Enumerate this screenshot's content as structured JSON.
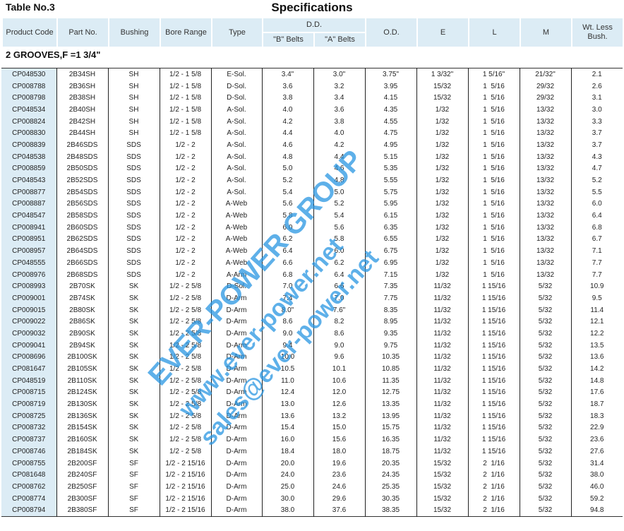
{
  "table_no": "Table No.3",
  "title": "Specifications",
  "header": {
    "product_code": "Product Code",
    "part_no": "Part No.",
    "bushing": "Bushing",
    "bore_range": "Bore Range",
    "type": "Type",
    "dd": "D.D.",
    "b_belts": "\"B\" Belts",
    "a_belts": "\"A\" Belts",
    "od": "O.D.",
    "e": "E",
    "l": "L",
    "m": "M",
    "wt": "Wt. Less Bush."
  },
  "section": "2 GROOVES,F =1 3/4\"",
  "rows": [
    [
      "CP048530",
      "2B34SH",
      "SH",
      "1/2 - 1 5/8",
      "E-Sol.",
      "3.4\"",
      "3.0\"",
      "3.75\"",
      "1 3/32\"",
      "1 5/16\"",
      "21/32\"",
      "2.1"
    ],
    [
      "CP008788",
      "2B36SH",
      "SH",
      "1/2 - 1 5/8",
      "D-Sol.",
      "3.6",
      "3.2",
      "3.95",
      "15/32",
      "1  5/16",
      "29/32",
      "2.6"
    ],
    [
      "CP008798",
      "2B38SH",
      "SH",
      "1/2 - 1 5/8",
      "D-Sol.",
      "3.8",
      "3.4",
      "4.15",
      "15/32",
      "1  5/16",
      "29/32",
      "3.1"
    ],
    [
      "CP048534",
      "2B40SH",
      "SH",
      "1/2 - 1 5/8",
      "A-Sol.",
      "4.0",
      "3.6",
      "4.35",
      "1/32",
      "1  5/16",
      "13/32",
      "3.0"
    ],
    [
      "CP008824",
      "2B42SH",
      "SH",
      "1/2 - 1 5/8",
      "A-Sol.",
      "4.2",
      "3.8",
      "4.55",
      "1/32",
      "1  5/16",
      "13/32",
      "3.3"
    ],
    [
      "CP008830",
      "2B44SH",
      "SH",
      "1/2 - 1 5/8",
      "A-Sol.",
      "4.4",
      "4.0",
      "4.75",
      "1/32",
      "1  5/16",
      "13/32",
      "3.7"
    ],
    [
      "CP008839",
      "2B46SDS",
      "SDS",
      "1/2 - 2",
      "A-Sol.",
      "4.6",
      "4.2",
      "4.95",
      "1/32",
      "1  5/16",
      "13/32",
      "3.7"
    ],
    [
      "CP048538",
      "2B48SDS",
      "SDS",
      "1/2 - 2",
      "A-Sol.",
      "4.8",
      "4.4",
      "5.15",
      "1/32",
      "1  5/16",
      "13/32",
      "4.3"
    ],
    [
      "CP008859",
      "2B50SDS",
      "SDS",
      "1/2 - 2",
      "A-Sol.",
      "5.0",
      "4.6",
      "5.35",
      "1/32",
      "1  5/16",
      "13/32",
      "4.7"
    ],
    [
      "CP048543",
      "2B52SDS",
      "SDS",
      "1/2 - 2",
      "A-Sol.",
      "5.2",
      "4.8",
      "5.55",
      "1/32",
      "1  5/16",
      "13/32",
      "5.2"
    ],
    [
      "CP008877",
      "2B54SDS",
      "SDS",
      "1/2 - 2",
      "A-Sol.",
      "5.4",
      "5.0",
      "5.75",
      "1/32",
      "1  5/16",
      "13/32",
      "5.5"
    ],
    [
      "CP008887",
      "2B56SDS",
      "SDS",
      "1/2 - 2",
      "A-Web",
      "5.6",
      "5.2",
      "5.95",
      "1/32",
      "1  5/16",
      "13/32",
      "6.0"
    ],
    [
      "CP048547",
      "2B58SDS",
      "SDS",
      "1/2 - 2",
      "A-Web",
      "5.8",
      "5.4",
      "6.15",
      "1/32",
      "1  5/16",
      "13/32",
      "6.4"
    ],
    [
      "CP008941",
      "2B60SDS",
      "SDS",
      "1/2 - 2",
      "A-Web",
      "6.0",
      "5.6",
      "6.35",
      "1/32",
      "1  5/16",
      "13/32",
      "6.8"
    ],
    [
      "CP008951",
      "2B62SDS",
      "SDS",
      "1/2 - 2",
      "A-Web",
      "6.2",
      "5.8",
      "6.55",
      "1/32",
      "1  5/16",
      "13/32",
      "6.7"
    ],
    [
      "CP008957",
      "2B64SDS",
      "SDS",
      "1/2 - 2",
      "A-Web",
      "6.4",
      "6.0",
      "6.75",
      "1/32",
      "1  5/16",
      "13/32",
      "7.1"
    ],
    [
      "CP048555",
      "2B66SDS",
      "SDS",
      "1/2 - 2",
      "A-Web",
      "6.6",
      "6.2",
      "6.95",
      "1/32",
      "1  5/16",
      "13/32",
      "7.7"
    ],
    [
      "CP008976",
      "2B68SDS",
      "SDS",
      "1/2 - 2",
      "A-Arm",
      "6.8",
      "6.4",
      "7.15",
      "1/32",
      "1  5/16",
      "13/32",
      "7.7"
    ],
    [
      "CP008993",
      "2B70SK",
      "SK",
      "1/2 - 2 5/8",
      "D-Sol.",
      "7.0",
      "6.6",
      "7.35",
      "11/32",
      "1 15/16",
      "5/32",
      "10.9"
    ],
    [
      "CP009001",
      "2B74SK",
      "SK",
      "1/2 - 2 5/8",
      "D-Arm",
      "7.4",
      "7.0",
      "7.75",
      "11/32",
      "1 15/16",
      "5/32",
      "9.5"
    ],
    [
      "CP009015",
      "2B80SK",
      "SK",
      "1/2 - 2 5/8",
      "D-Arm",
      "8.0\"",
      "7.6\"",
      "8.35",
      "11/32",
      "1 15/16",
      "5/32",
      "11.4"
    ],
    [
      "CP009022",
      "2B86SK",
      "SK",
      "1/2 - 2 5/8",
      "D-Arm",
      "8.6",
      "8.2",
      "8.95",
      "11/32",
      "1 15/16",
      "5/32",
      "12.1"
    ],
    [
      "CP009032",
      "2B90SK",
      "SK",
      "1/2 - 2 5/8",
      "D-Arm",
      "9.0",
      "8.6",
      "9.35",
      "11/32",
      "1 15/16",
      "5/32",
      "12.2"
    ],
    [
      "CP009041",
      "2B94SK",
      "SK",
      "1/2 - 2 5/8",
      "D-Arm",
      "9.4",
      "9.0",
      "9.75",
      "11/32",
      "1 15/16",
      "5/32",
      "13.5"
    ],
    [
      "CP008696",
      "2B100SK",
      "SK",
      "1/2 - 2 5/8",
      "D-Arm",
      "10.0",
      "9.6",
      "10.35",
      "11/32",
      "1 15/16",
      "5/32",
      "13.6"
    ],
    [
      "CP081647",
      "2B105SK",
      "SK",
      "1/2 - 2 5/8",
      "D-Arm",
      "10.5",
      "10.1",
      "10.85",
      "11/32",
      "1 15/16",
      "5/32",
      "14.2"
    ],
    [
      "CP048519",
      "2B110SK",
      "SK",
      "1/2 - 2 5/8",
      "D-Arm",
      "11.0",
      "10.6",
      "11.35",
      "11/32",
      "1 15/16",
      "5/32",
      "14.8"
    ],
    [
      "CP008715",
      "2B124SK",
      "SK",
      "1/2 - 2 5/8",
      "D-Arm",
      "12.4",
      "12.0",
      "12.75",
      "11/32",
      "1 15/16",
      "5/32",
      "17.6"
    ],
    [
      "CP008719",
      "2B130SK",
      "SK",
      "1/2 - 2 5/8",
      "D-Arm",
      "13.0",
      "12.6",
      "13.35",
      "11/32",
      "1 15/16",
      "5/32",
      "18.7"
    ],
    [
      "CP008725",
      "2B136SK",
      "SK",
      "1/2 - 2 5/8",
      "D-Arm",
      "13.6",
      "13.2",
      "13.95",
      "11/32",
      "1 15/16",
      "5/32",
      "18.3"
    ],
    [
      "CP008732",
      "2B154SK",
      "SK",
      "1/2 - 2 5/8",
      "D-Arm",
      "15.4",
      "15.0",
      "15.75",
      "11/32",
      "1 15/16",
      "5/32",
      "22.9"
    ],
    [
      "CP008737",
      "2B160SK",
      "SK",
      "1/2 - 2 5/8",
      "D-Arm",
      "16.0",
      "15.6",
      "16.35",
      "11/32",
      "1 15/16",
      "5/32",
      "23.6"
    ],
    [
      "CP008746",
      "2B184SK",
      "SK",
      "1/2 - 2 5/8",
      "D-Arm",
      "18.4",
      "18.0",
      "18.75",
      "11/32",
      "1 15/16",
      "5/32",
      "27.6"
    ],
    [
      "CP008755",
      "2B200SF",
      "SF",
      "1/2 - 2 15/16",
      "D-Arm",
      "20.0",
      "19.6",
      "20.35",
      "15/32",
      "2  1/16",
      "5/32",
      "31.4"
    ],
    [
      "CP081648",
      "2B240SF",
      "SF",
      "1/2 - 2 15/16",
      "D-Arm",
      "24.0",
      "23.6",
      "24.35",
      "15/32",
      "2  1/16",
      "5/32",
      "38.0"
    ],
    [
      "CP008762",
      "2B250SF",
      "SF",
      "1/2 - 2 15/16",
      "D-Arm",
      "25.0",
      "24.6",
      "25.35",
      "15/32",
      "2  1/16",
      "5/32",
      "46.0"
    ],
    [
      "CP008774",
      "2B300SF",
      "SF",
      "1/2 - 2 15/16",
      "D-Arm",
      "30.0",
      "29.6",
      "30.35",
      "15/32",
      "2  1/16",
      "5/32",
      "59.2"
    ],
    [
      "CP008794",
      "2B380SF",
      "SF",
      "1/2 - 2 15/16",
      "D-Arm",
      "38.0",
      "37.6",
      "38.35",
      "15/32",
      "2  1/16",
      "5/32",
      "94.8"
    ]
  ],
  "watermark": [
    "EVER-POWER GROUP",
    "www.ever-power.net",
    "sales@ever-power.net"
  ],
  "colors": {
    "header_bg": "#dcecf5",
    "watermark": "#2896e1"
  }
}
